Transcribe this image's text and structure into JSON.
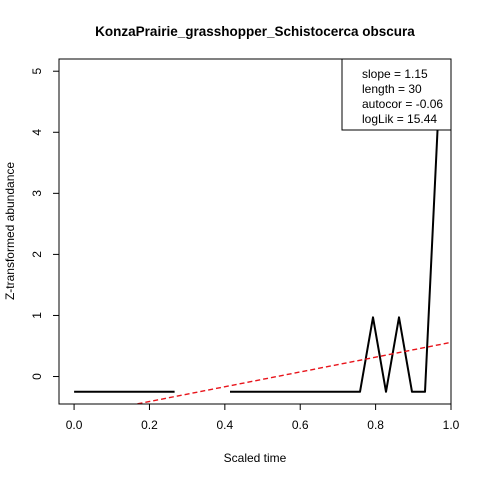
{
  "chart_data": {
    "type": "line",
    "title": "KonzaPrairie_grasshopper_Schistocerca obscura",
    "xlabel": "Scaled time",
    "ylabel": "Z-transformed abundance",
    "xlim": [
      -0.04,
      1.0
    ],
    "ylim": [
      -0.45,
      5.2
    ],
    "x_ticks": [
      0.0,
      0.2,
      0.4,
      0.6,
      0.8,
      1.0
    ],
    "x_tick_labels": [
      "0.0",
      "0.2",
      "0.4",
      "0.6",
      "0.8",
      "1.0"
    ],
    "y_ticks": [
      0,
      1,
      2,
      3,
      4,
      5
    ],
    "y_tick_labels": [
      "0",
      "1",
      "2",
      "3",
      "4",
      "5"
    ],
    "grid": false,
    "series": [
      {
        "segments": [
          {
            "x": [
              0.0,
              0.2667
            ],
            "y": [
              -0.25,
              -0.25
            ]
          },
          {
            "x": [
              0.4138,
              0.7586,
              0.7931,
              0.8276,
              0.8621,
              0.8966,
              0.931,
              0.9655,
              1.0
            ],
            "y": [
              -0.25,
              -0.25,
              0.97,
              -0.25,
              0.97,
              -0.25,
              -0.25,
              4.2,
              5.8
            ]
          }
        ],
        "color": "#000000"
      },
      {
        "x": [
          -0.04,
          1.1
        ],
        "y": [
          -0.7,
          0.68
        ],
        "color": "#e8141b",
        "dashed": true
      }
    ],
    "legend": {
      "placement": "top-right",
      "lines": [
        "slope = 1.15",
        "length = 30",
        "autocor = -0.06",
        "logLik = 15.44"
      ]
    }
  }
}
